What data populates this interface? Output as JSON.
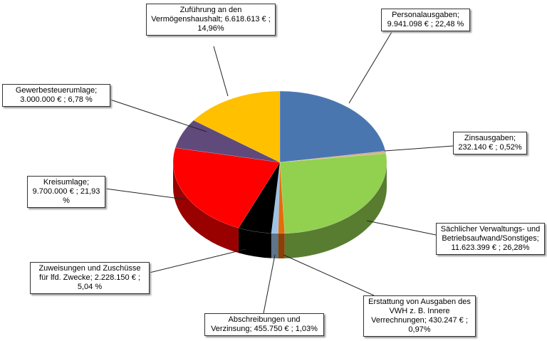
{
  "chart_data": {
    "type": "pie",
    "categories": [
      "Personalausgaben;",
      "Zinsausgaben;",
      "Sächlicher Verwaltungs- und Betriebsaufwand/Sonstiges;",
      "Erstattung von Ausgaben des VWH z. B. Innere Verrechnungen;",
      "Abschreibungen und Verzinsung;",
      "Zuweisungen und Zuschüsse für lfd. Zwecke;",
      "Kreisumlage;",
      "Gewerbesteuerumlage;",
      "Zuführung an den Vermögenshaushalt;"
    ],
    "values": [
      22.48,
      0.52,
      26.28,
      0.97,
      1.03,
      5.04,
      21.93,
      6.78,
      14.96
    ],
    "value_labels": [
      "22,48 %",
      "0,52%",
      "26,28%",
      "0,97%",
      "1,03%",
      "5,04 %",
      "21,93 %",
      "6,78 %",
      "14,96%"
    ],
    "amounts": [
      9941098,
      232140,
      11623399,
      430247,
      455750,
      2228150,
      9700000,
      3000000,
      6618613
    ],
    "amount_labels": [
      "9.941.098 € ;",
      "232.140  € ;",
      "11.623.399 € ;",
      "430.247 € ;",
      "455.750 € ;",
      "2.228.150 € ;",
      "9.700.000 € ;",
      "3.000.000 € ;",
      "6.618.613 € ;"
    ],
    "colors": [
      "#4a76b0",
      "#d8b08a",
      "#92d050",
      "#e46c0a",
      "#9dc3e6",
      "#000000",
      "#ff0000",
      "#604a7b",
      "#ffc000"
    ]
  }
}
